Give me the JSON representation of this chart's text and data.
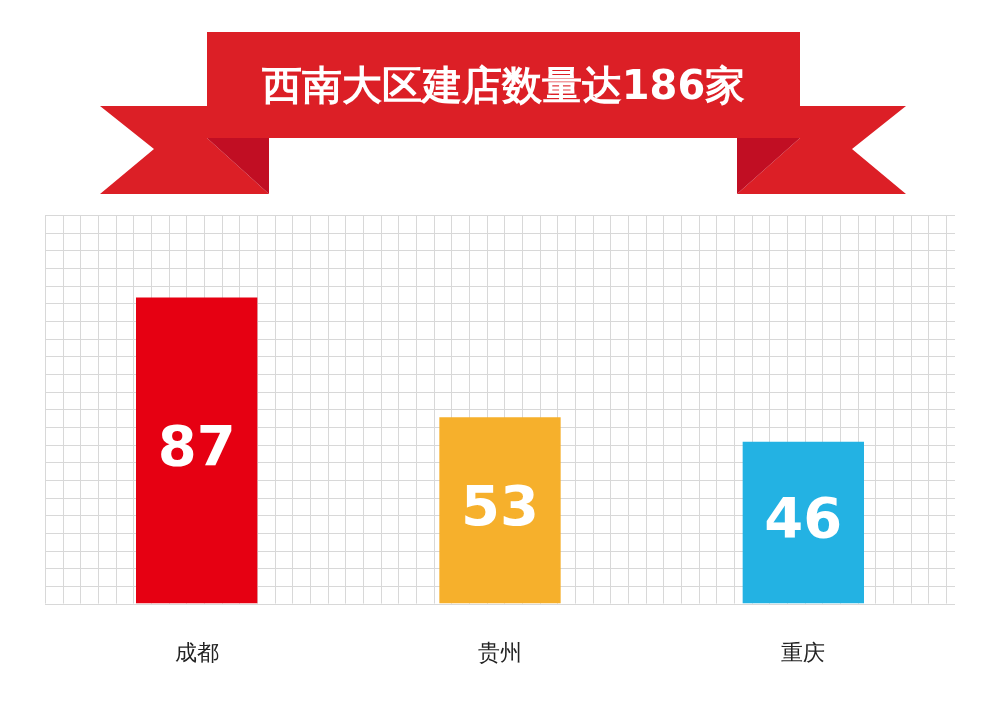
{
  "chart_data": {
    "type": "bar",
    "title": "西南大区建店数量达186家",
    "categories": [
      "成都",
      "贵州",
      "重庆"
    ],
    "values": [
      87,
      53,
      46
    ],
    "colors": [
      "#e60012",
      "#f6b02c",
      "#23b2e3"
    ],
    "data_labels": true,
    "grid": true
  }
}
